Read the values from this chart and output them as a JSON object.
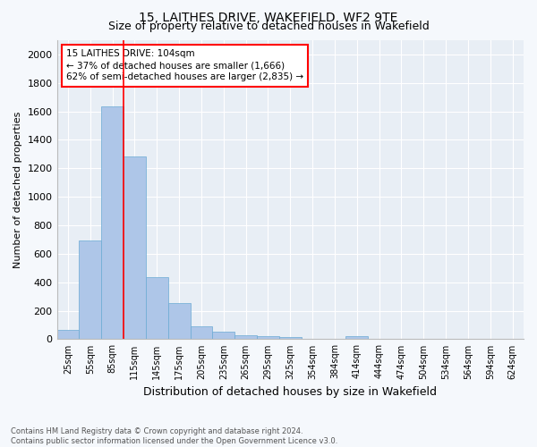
{
  "title": "15, LAITHES DRIVE, WAKEFIELD, WF2 9TE",
  "subtitle": "Size of property relative to detached houses in Wakefield",
  "xlabel": "Distribution of detached houses by size in Wakefield",
  "ylabel": "Number of detached properties",
  "bar_color": "#aec6e8",
  "bar_edge_color": "#6aaad4",
  "plot_bg_color": "#e8eef5",
  "fig_bg_color": "#f5f8fc",
  "grid_color": "#ffffff",
  "categories": [
    "25sqm",
    "55sqm",
    "85sqm",
    "115sqm",
    "145sqm",
    "175sqm",
    "205sqm",
    "235sqm",
    "265sqm",
    "295sqm",
    "325sqm",
    "354sqm",
    "384sqm",
    "414sqm",
    "444sqm",
    "474sqm",
    "504sqm",
    "534sqm",
    "564sqm",
    "594sqm",
    "624sqm"
  ],
  "values": [
    65,
    695,
    1635,
    1285,
    435,
    255,
    90,
    55,
    30,
    20,
    15,
    0,
    0,
    20,
    0,
    0,
    0,
    0,
    0,
    0,
    0
  ],
  "ylim": [
    0,
    2100
  ],
  "yticks": [
    0,
    200,
    400,
    600,
    800,
    1000,
    1200,
    1400,
    1600,
    1800,
    2000
  ],
  "property_line_x": 2.5,
  "annotation_title": "15 LAITHES DRIVE: 104sqm",
  "annotation_line1": "← 37% of detached houses are smaller (1,666)",
  "annotation_line2": "62% of semi-detached houses are larger (2,835) →",
  "footer_line1": "Contains HM Land Registry data © Crown copyright and database right 2024.",
  "footer_line2": "Contains public sector information licensed under the Open Government Licence v3.0."
}
